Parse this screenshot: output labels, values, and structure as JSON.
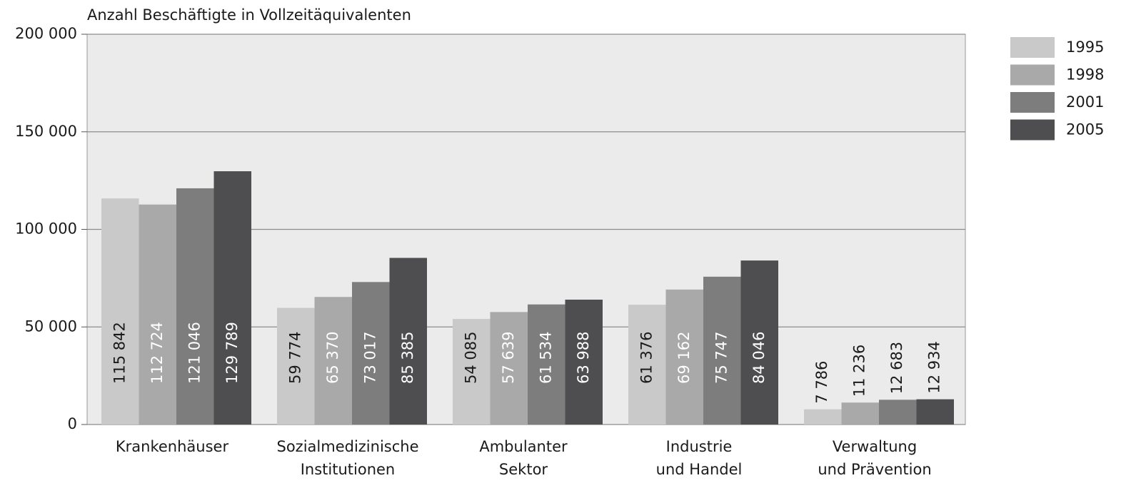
{
  "chart_data": {
    "type": "bar",
    "y_axis_label": "Anzahl Beschäftigte in Vollzeitäquivalenten",
    "categories": [
      [
        "Krankenhäuser"
      ],
      [
        "Sozialmedizinische",
        "Institutionen"
      ],
      [
        "Ambulanter",
        "Sektor"
      ],
      [
        "Industrie",
        "und Handel"
      ],
      [
        "Verwaltung",
        "und Prävention"
      ]
    ],
    "series": [
      {
        "name": "1995",
        "color": "#c9c9c9",
        "label_color": "#1a1a1a",
        "values": [
          115842,
          59774,
          54085,
          61376,
          7786
        ],
        "value_labels": [
          "115 842",
          "59 774",
          "54 085",
          "61 376",
          "7 786"
        ]
      },
      {
        "name": "1998",
        "color": "#a9a9a9",
        "label_color": "#ffffff",
        "values": [
          112724,
          65370,
          57639,
          69162,
          11236
        ],
        "value_labels": [
          "112 724",
          "65 370",
          "57 639",
          "69 162",
          "11 236"
        ]
      },
      {
        "name": "2001",
        "color": "#7d7d7d",
        "label_color": "#ffffff",
        "values": [
          121046,
          73017,
          61534,
          75747,
          12683
        ],
        "value_labels": [
          "121 046",
          "73 017",
          "61 534",
          "75 747",
          "12 683"
        ]
      },
      {
        "name": "2005",
        "color": "#4e4e50",
        "label_color": "#ffffff",
        "values": [
          129789,
          85385,
          63988,
          84046,
          12934
        ],
        "value_labels": [
          "129 789",
          "85 385",
          "63 988",
          "84 046",
          "12 934"
        ]
      }
    ],
    "ylim": [
      0,
      200000
    ],
    "yticks": [
      0,
      {
        "value": 50000,
        "label": "50 000"
      },
      {
        "value": 100000,
        "label": "100 000"
      },
      {
        "value": 150000,
        "label": "150 000"
      },
      {
        "value": 200000,
        "label": "200 000"
      }
    ],
    "grid": true,
    "legend": "right"
  }
}
